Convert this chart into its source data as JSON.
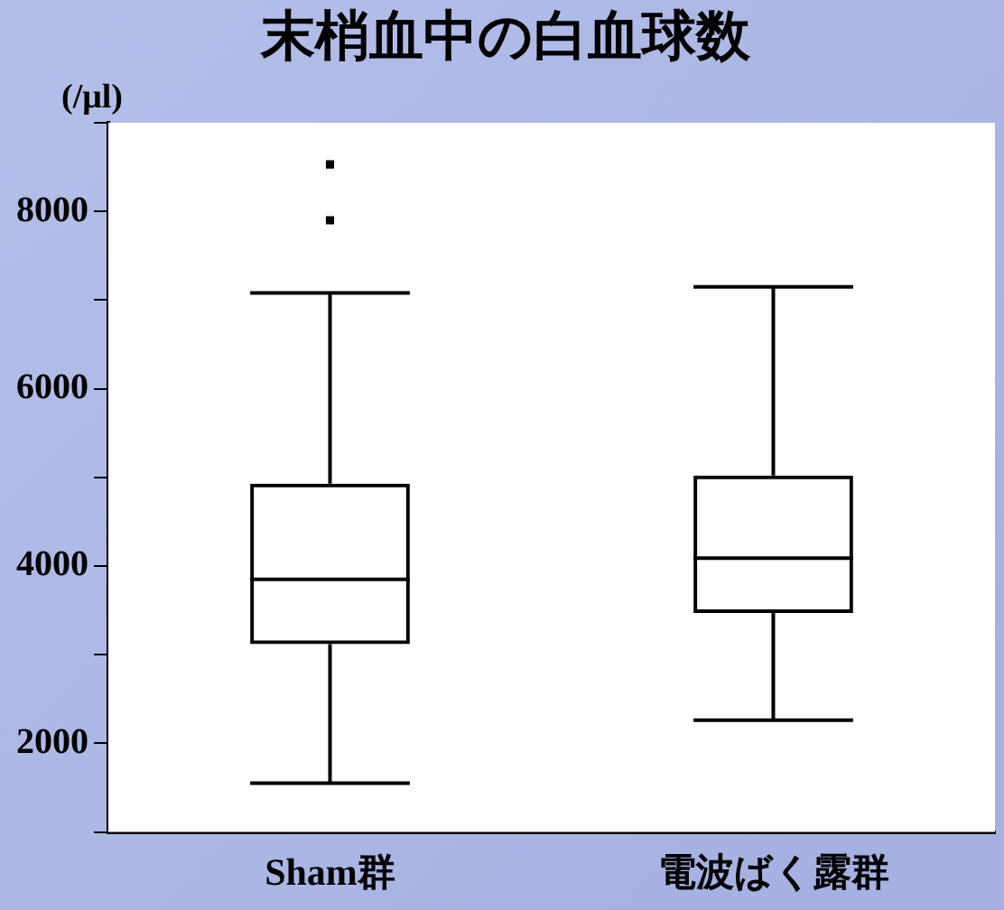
{
  "chart_data": {
    "type": "box",
    "title": "末梢血中の白血球数",
    "ylabel": "(/μl)",
    "categories": [
      "Sham群",
      "電波ばく露群"
    ],
    "boxes": [
      {
        "low": 1550,
        "q1": 3120,
        "median": 3850,
        "q3": 4930,
        "high": 7080,
        "outliers": [
          7900,
          8530
        ]
      },
      {
        "low": 2260,
        "q1": 3470,
        "median": 4090,
        "q3": 5020,
        "high": 7150
      }
    ],
    "color": "#000000",
    "ylim": [
      1000,
      9000
    ],
    "yticks": [
      {
        "value": 1000,
        "label": null
      },
      2000,
      {
        "value": 3000,
        "label": null
      },
      4000,
      {
        "value": 5000,
        "label": null
      },
      6000,
      {
        "value": 7000,
        "label": null
      },
      8000,
      {
        "value": 9000,
        "label": null
      }
    ],
    "grid": false,
    "legend": false
  }
}
